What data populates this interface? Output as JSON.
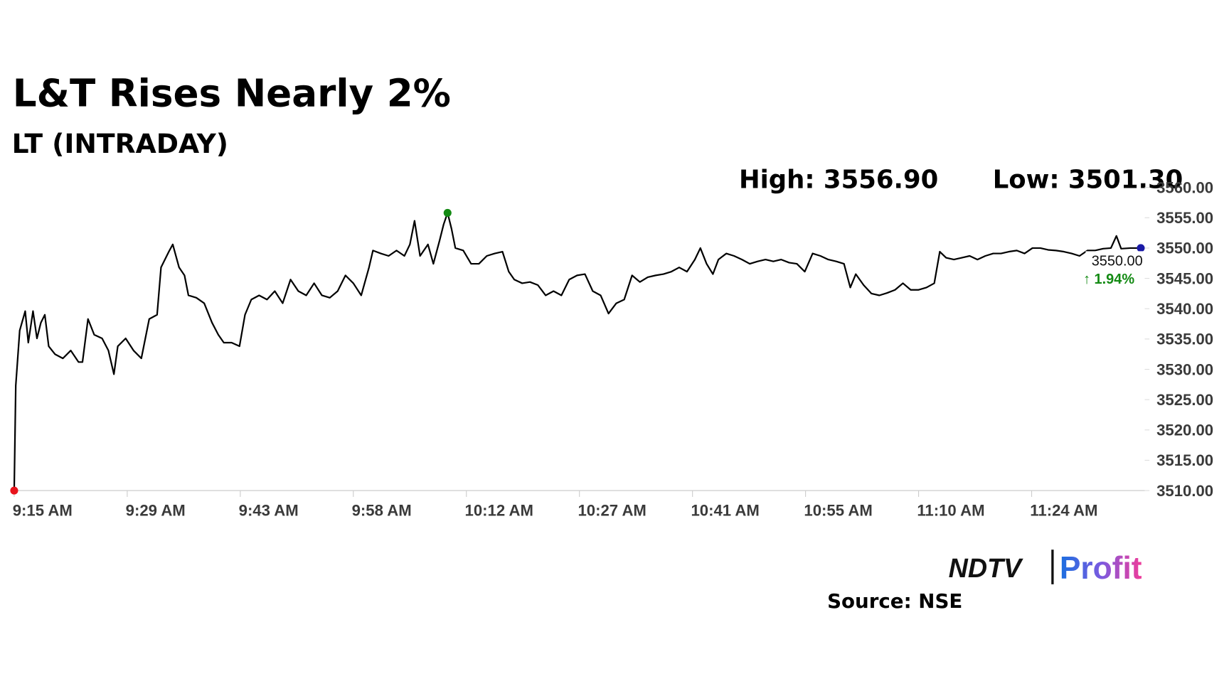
{
  "chart_data": {
    "type": "line",
    "title": "L&T Rises Nearly 2%",
    "subtitle": "LT (INTRADAY)",
    "annotations": [
      "High: 3556.90",
      "Low: 3501.30"
    ],
    "last_label": "3550.00",
    "change_label": "↑ 1.94%",
    "source": "Source: NSE",
    "logo": {
      "brand": "NDTV",
      "product": "Profit"
    },
    "color": "#000000",
    "start_color": "#e8141c",
    "high_color": "#138a13",
    "end_color": "#1a1aa6",
    "change_color": "#138a13",
    "xlim": [
      0,
      144
    ],
    "xticks": [
      {
        "value": 0,
        "label": "9:15 AM"
      },
      {
        "value": 14.4,
        "label": "9:29 AM"
      },
      {
        "value": 28.8,
        "label": "9:43 AM"
      },
      {
        "value": 43.2,
        "label": "9:58 AM"
      },
      {
        "value": 57.6,
        "label": "10:12 AM"
      },
      {
        "value": 72,
        "label": "10:27 AM"
      },
      {
        "value": 86.4,
        "label": "10:41 AM"
      },
      {
        "value": 100.8,
        "label": "10:55 AM"
      },
      {
        "value": 115.2,
        "label": "11:10 AM"
      },
      {
        "value": 129.6,
        "label": "11:24 AM"
      }
    ],
    "ylim": [
      3510,
      3560
    ],
    "yticks": [
      {
        "value": 3510,
        "label": "3510.00"
      },
      {
        "value": 3515,
        "label": "3515.00"
      },
      {
        "value": 3520,
        "label": "3520.00"
      },
      {
        "value": 3525,
        "label": "3525.00"
      },
      {
        "value": 3530,
        "label": "3530.00"
      },
      {
        "value": 3535,
        "label": "3535.00"
      },
      {
        "value": 3540,
        "label": "3540.00"
      },
      {
        "value": 3545,
        "label": "3545.00"
      },
      {
        "value": 3550,
        "label": "3550.00"
      },
      {
        "value": 3555,
        "label": "3555.00"
      },
      {
        "value": 3560,
        "label": "3560.00"
      }
    ],
    "x": [
      0,
      0.2,
      0.7,
      1.4,
      1.8,
      2.4,
      2.9,
      3.4,
      3.9,
      4.4,
      5.2,
      6.2,
      7.2,
      8.2,
      8.7,
      9.4,
      10.2,
      11.2,
      12.0,
      12.7,
      13.2,
      14.2,
      15.2,
      16.2,
      17.2,
      18.2,
      18.7,
      19.7,
      20.2,
      21.0,
      21.7,
      22.2,
      23.2,
      24.2,
      25.2,
      26.0,
      26.7,
      27.7,
      28.7,
      29.4,
      30.2,
      31.2,
      32.2,
      33.2,
      34.2,
      35.2,
      36.2,
      37.2,
      38.2,
      39.2,
      40.2,
      41.2,
      42.2,
      43.2,
      44.2,
      45.2,
      45.7,
      46.7,
      47.7,
      48.7,
      49.7,
      50.4,
      51.0,
      51.7,
      52.7,
      53.4,
      54.2,
      54.7,
      55.2,
      55.7,
      56.2,
      57.2,
      58.2,
      59.2,
      60.2,
      61.2,
      62.2,
      63.0,
      63.7,
      64.7,
      65.7,
      66.7,
      67.7,
      68.7,
      69.7,
      70.7,
      71.7,
      72.7,
      73.7,
      74.7,
      75.7,
      76.7,
      77.7,
      78.7,
      79.7,
      80.7,
      81.7,
      82.7,
      83.7,
      84.7,
      85.7,
      86.7,
      87.4,
      88.2,
      89.0,
      89.7,
      90.7,
      91.7,
      92.7,
      93.7,
      94.7,
      95.7,
      96.7,
      97.7,
      98.7,
      99.7,
      100.7,
      101.7,
      102.7,
      103.7,
      104.7,
      105.7,
      106.5,
      107.2,
      108.2,
      109.2,
      110.2,
      111.2,
      112.2,
      113.2,
      114.2,
      115.2,
      116.2,
      117.2,
      117.9,
      118.7,
      119.7,
      120.7,
      121.7,
      122.7,
      123.7,
      124.7,
      125.7,
      126.7,
      127.7,
      128.7,
      129.7,
      130.7,
      131.7,
      132.7,
      133.7,
      134.7,
      135.7,
      136.7,
      137.7,
      138.7,
      139.7,
      140.4,
      141.0,
      142.2,
      143.5
    ],
    "values": [
      3510,
      3527.3,
      3536.4,
      3539.6,
      3534.4,
      3539.6,
      3535.1,
      3537.7,
      3539.0,
      3533.8,
      3532.5,
      3531.8,
      3533.1,
      3531.2,
      3531.2,
      3538.3,
      3535.7,
      3535.1,
      3533.1,
      3529.2,
      3533.8,
      3535.1,
      3533.1,
      3531.8,
      3538.3,
      3539.0,
      3546.8,
      3549.4,
      3550.6,
      3546.8,
      3545.5,
      3542.2,
      3541.8,
      3540.9,
      3537.7,
      3535.7,
      3534.4,
      3534.4,
      3533.8,
      3539.0,
      3541.5,
      3542.2,
      3541.5,
      3542.9,
      3540.9,
      3544.8,
      3542.9,
      3542.2,
      3544.2,
      3542.2,
      3541.8,
      3542.9,
      3545.5,
      3544.2,
      3542.2,
      3546.8,
      3549.6,
      3549.1,
      3548.7,
      3549.6,
      3548.7,
      3550.6,
      3554.5,
      3548.7,
      3550.6,
      3547.4,
      3551.3,
      3553.9,
      3555.8,
      3553.2,
      3550.0,
      3549.6,
      3547.4,
      3547.4,
      3548.7,
      3549.1,
      3549.4,
      3546.1,
      3544.8,
      3544.2,
      3544.4,
      3543.9,
      3542.2,
      3542.9,
      3542.2,
      3544.8,
      3545.5,
      3545.7,
      3542.9,
      3542.2,
      3539.2,
      3540.9,
      3541.5,
      3545.5,
      3544.4,
      3545.2,
      3545.5,
      3545.7,
      3546.1,
      3546.8,
      3546.1,
      3548.1,
      3550.0,
      3547.4,
      3545.7,
      3548.1,
      3549.1,
      3548.7,
      3548.1,
      3547.4,
      3547.8,
      3548.1,
      3547.8,
      3548.1,
      3547.6,
      3547.4,
      3546.1,
      3549.1,
      3548.7,
      3548.1,
      3547.8,
      3547.4,
      3543.5,
      3545.7,
      3543.9,
      3542.5,
      3542.2,
      3542.6,
      3543.1,
      3544.2,
      3543.1,
      3543.1,
      3543.5,
      3544.2,
      3549.4,
      3548.4,
      3548.1,
      3548.4,
      3548.7,
      3548.1,
      3548.7,
      3549.1,
      3549.1,
      3549.4,
      3549.6,
      3549.1,
      3550.0,
      3550.0,
      3549.7,
      3549.6,
      3549.4,
      3549.1,
      3548.7,
      3549.6,
      3549.6,
      3549.9,
      3550.0,
      3552.0,
      3549.9,
      3550.0,
      3550.0
    ]
  }
}
